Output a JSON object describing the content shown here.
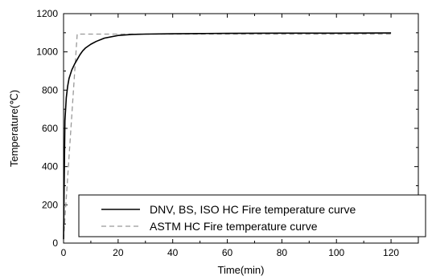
{
  "chart_data": {
    "type": "line",
    "xlabel": "Time(min)",
    "ylabel": "Temperature(℃)",
    "xlim": [
      0,
      130
    ],
    "ylim": [
      0,
      1200
    ],
    "xticks": [
      0,
      20,
      40,
      60,
      80,
      100,
      120
    ],
    "yticks": [
      0,
      200,
      400,
      600,
      800,
      1000,
      1200
    ],
    "xtick_labels": [
      "0",
      "20",
      "40",
      "60",
      "80",
      "100",
      "120"
    ],
    "ytick_labels": [
      "0",
      "200",
      "400",
      "600",
      "800",
      "1000",
      "1200"
    ],
    "grid": false,
    "legend_position": "bottom-right",
    "series": [
      {
        "name": "DNV, BS, ISO HC Fire temperature curve",
        "style": "solid",
        "color": "#000000",
        "x": [
          0,
          0.5,
          1,
          1.5,
          2,
          3,
          4,
          5,
          6,
          7,
          8,
          10,
          12,
          15,
          20,
          25,
          30,
          40,
          50,
          60,
          80,
          100,
          120
        ],
        "y": [
          20,
          640,
          760,
          820,
          860,
          905,
          935,
          960,
          985,
          1005,
          1020,
          1040,
          1055,
          1072,
          1086,
          1091,
          1093,
          1095,
          1096,
          1097,
          1098,
          1098,
          1099
        ]
      },
      {
        "name": "ASTM HC Fire temperature curve",
        "style": "dashed",
        "color": "#999999",
        "x": [
          0,
          5,
          120
        ],
        "y": [
          20,
          1093,
          1093
        ]
      }
    ]
  }
}
